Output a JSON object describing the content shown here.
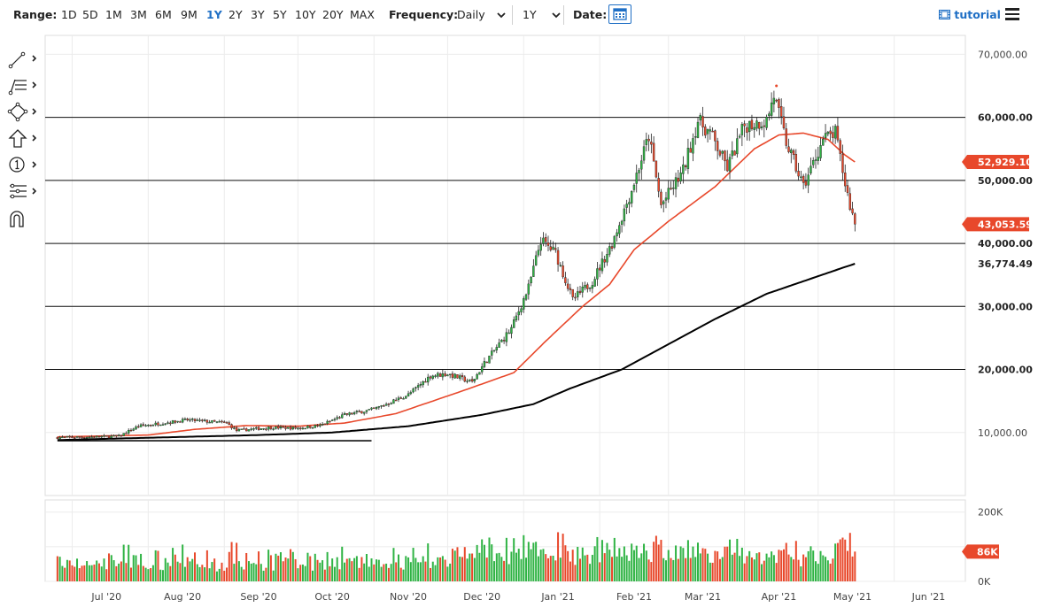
{
  "toolbar": {
    "range_label": "Range:",
    "ranges": [
      "1D",
      "5D",
      "1M",
      "3M",
      "6M",
      "9M",
      "1Y",
      "2Y",
      "3Y",
      "5Y",
      "10Y",
      "20Y",
      "MAX"
    ],
    "active_range": "1Y",
    "frequency_label": "Frequency:",
    "frequency_value": "Daily",
    "period_value": "1Y",
    "date_label": "Date:",
    "tutorial_label": "tutorial",
    "accent_color": "#1f6fc5"
  },
  "sidebar_tools": [
    "line-tool-icon",
    "fibonacci-tool-icon",
    "shapes-tool-icon",
    "arrow-tool-icon",
    "annotation-number-icon",
    "measure-tool-icon",
    "magnet-icon"
  ],
  "chart_data": {
    "type": "candlestick",
    "frequency": "Daily",
    "x_ticks": [
      "Jul '20",
      "Aug '20",
      "Sep '20",
      "Oct '20",
      "Nov '20",
      "Dec '20",
      "Jan '21",
      "Feb '21",
      "Mar '21",
      "Apr '21",
      "May '21",
      "Jun '21"
    ],
    "y_ticks": [
      10000,
      70000
    ],
    "y_tick_labels": [
      "10,000.00",
      "70,000.00"
    ],
    "ylim": [
      0,
      73000
    ],
    "horizontal_levels": [
      {
        "value": 60000,
        "label": "60,000.00"
      },
      {
        "value": 50000,
        "label": "50,000.00"
      },
      {
        "value": 40000,
        "label": "40,000.00"
      },
      {
        "value": 30000,
        "label": "30,000.00"
      },
      {
        "value": 20000,
        "label": "20,000.00"
      }
    ],
    "trendline": {
      "from": [
        "2020-06-25",
        8700
      ],
      "to": [
        "2020-10-31",
        8700
      ]
    },
    "last_price": {
      "value": 43053.59,
      "label": "43,053.59",
      "color": "#e8482b"
    },
    "ma_fast": {
      "label": "52,929.10",
      "last": 52929.1,
      "color": "#e8482b",
      "points": [
        [
          "2020-06-25",
          9300
        ],
        [
          "2020-08-01",
          9600
        ],
        [
          "2020-08-20",
          10500
        ],
        [
          "2020-09-10",
          11100
        ],
        [
          "2020-10-01",
          11000
        ],
        [
          "2020-10-20",
          11500
        ],
        [
          "2020-11-10",
          13000
        ],
        [
          "2020-11-25",
          15000
        ],
        [
          "2020-12-10",
          17000
        ],
        [
          "2020-12-28",
          19500
        ],
        [
          "2021-01-10",
          24500
        ],
        [
          "2021-01-25",
          30000
        ],
        [
          "2021-02-05",
          33500
        ],
        [
          "2021-02-15",
          39000
        ],
        [
          "2021-03-01",
          43500
        ],
        [
          "2021-03-20",
          49000
        ],
        [
          "2021-04-05",
          55000
        ],
        [
          "2021-04-15",
          57200
        ],
        [
          "2021-04-25",
          57500
        ],
        [
          "2021-05-05",
          56500
        ],
        [
          "2021-05-12",
          54000
        ],
        [
          "2021-05-16",
          52929
        ]
      ]
    },
    "ma_slow": {
      "label": "36,774.49",
      "last": 36774.49,
      "color": "#000000",
      "points": [
        [
          "2020-06-25",
          8800
        ],
        [
          "2020-07-15",
          9000
        ],
        [
          "2020-08-15",
          9300
        ],
        [
          "2020-09-15",
          9600
        ],
        [
          "2020-10-15",
          10000
        ],
        [
          "2020-11-15",
          11000
        ],
        [
          "2020-12-15",
          12800
        ],
        [
          "2021-01-05",
          14500
        ],
        [
          "2021-01-20",
          17000
        ],
        [
          "2021-02-10",
          20000
        ],
        [
          "2021-03-01",
          24000
        ],
        [
          "2021-03-20",
          28000
        ],
        [
          "2021-04-10",
          32000
        ],
        [
          "2021-04-25",
          34000
        ],
        [
          "2021-05-10",
          36000
        ],
        [
          "2021-05-16",
          36774
        ]
      ]
    },
    "anchor_closes": [
      [
        "2020-06-25",
        9200
      ],
      [
        "2020-07-20",
        9400
      ],
      [
        "2020-07-28",
        11000
      ],
      [
        "2020-08-17",
        12000
      ],
      [
        "2020-09-02",
        11500
      ],
      [
        "2020-09-06",
        10300
      ],
      [
        "2020-09-20",
        10800
      ],
      [
        "2020-10-01",
        10700
      ],
      [
        "2020-10-10",
        11100
      ],
      [
        "2020-10-20",
        12800
      ],
      [
        "2020-11-01",
        13700
      ],
      [
        "2020-11-15",
        16000
      ],
      [
        "2020-11-24",
        19000
      ],
      [
        "2020-12-01",
        19300
      ],
      [
        "2020-12-11",
        18000
      ],
      [
        "2020-12-16",
        21000
      ],
      [
        "2020-12-27",
        26500
      ],
      [
        "2021-01-03",
        33000
      ],
      [
        "2021-01-08",
        40500
      ],
      [
        "2021-01-14",
        38500
      ],
      [
        "2021-01-21",
        31000
      ],
      [
        "2021-01-29",
        34000
      ],
      [
        "2021-02-06",
        40000
      ],
      [
        "2021-02-14",
        48500
      ],
      [
        "2021-02-21",
        57000
      ],
      [
        "2021-02-26",
        46000
      ],
      [
        "2021-03-07",
        51500
      ],
      [
        "2021-03-13",
        59500
      ],
      [
        "2021-03-18",
        57500
      ],
      [
        "2021-03-25",
        52000
      ],
      [
        "2021-04-01",
        58700
      ],
      [
        "2021-04-10",
        59500
      ],
      [
        "2021-04-13",
        63500
      ],
      [
        "2021-04-18",
        56000
      ],
      [
        "2021-04-25",
        49000
      ],
      [
        "2021-05-03",
        56500
      ],
      [
        "2021-05-08",
        57500
      ],
      [
        "2021-05-12",
        49500
      ],
      [
        "2021-05-14",
        46000
      ],
      [
        "2021-05-16",
        43053
      ]
    ],
    "high_marker": {
      "date": "2021-04-14",
      "value": 65000
    },
    "volume": {
      "ticks": [
        "200K",
        "0K"
      ],
      "last_label": "86K",
      "max": 235000,
      "up_color": "#2fb344",
      "down_color": "#e8482b"
    },
    "colors": {
      "up": "#2fb344",
      "down": "#e8482b",
      "wick": "#222222"
    }
  }
}
